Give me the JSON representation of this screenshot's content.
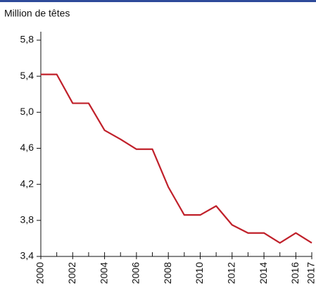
{
  "chart_data": {
    "type": "line",
    "y_label": "Million de têtes",
    "x": [
      2000,
      2001,
      2002,
      2003,
      2004,
      2005,
      2006,
      2007,
      2008,
      2009,
      2010,
      2011,
      2012,
      2013,
      2014,
      2015,
      2016,
      2017
    ],
    "series": [
      {
        "color": "#c0202a",
        "values": [
          5.42,
          5.42,
          5.1,
          5.1,
          4.8,
          4.7,
          4.59,
          4.59,
          4.17,
          3.86,
          3.86,
          3.96,
          3.75,
          3.66,
          3.66,
          3.55,
          3.66,
          3.55
        ]
      }
    ],
    "xlim": [
      2000,
      2017
    ],
    "xticks": [
      2000,
      2002,
      2004,
      2006,
      2008,
      2010,
      2012,
      2014,
      2016,
      2017
    ],
    "ylim": [
      3.4,
      5.8
    ],
    "yticks": [
      {
        "value": 3.4,
        "label": "3,4"
      },
      {
        "value": 3.8,
        "label": "3,8"
      },
      {
        "value": 4.2,
        "label": "4,2"
      },
      {
        "value": 4.6,
        "label": "4,6"
      },
      {
        "value": 5.0,
        "label": "5,0"
      },
      {
        "value": 5.4,
        "label": "5,4"
      },
      {
        "value": 5.8,
        "label": "5,8"
      }
    ],
    "grid": false
  }
}
